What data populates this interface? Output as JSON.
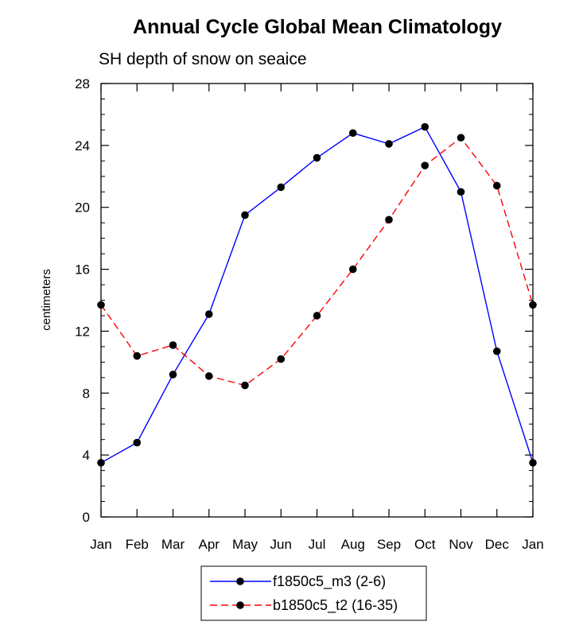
{
  "chart_data": {
    "type": "line",
    "title": "Annual Cycle Global Mean Climatology",
    "subtitle": "SH depth of snow on seaice",
    "xlabel": "",
    "ylabel": "centimeters",
    "ylim": [
      0,
      28
    ],
    "yticks": [
      "0",
      "4",
      "8",
      "12",
      "16",
      "20",
      "24",
      "28"
    ],
    "categories": [
      "Jan",
      "Feb",
      "Mar",
      "Apr",
      "May",
      "Jun",
      "Jul",
      "Aug",
      "Sep",
      "Oct",
      "Nov",
      "Dec",
      "Jan"
    ],
    "series": [
      {
        "name": "f1850c5_m3 (2-6)",
        "color": "#0000ff",
        "dash": "solid",
        "values": [
          3.5,
          4.8,
          9.2,
          13.1,
          19.5,
          21.3,
          23.2,
          24.8,
          24.1,
          25.2,
          21.0,
          10.7,
          3.5
        ]
      },
      {
        "name": "b1850c5_t2 (16-35)",
        "color": "#ff0000",
        "dash": "dashed",
        "values": [
          13.7,
          10.4,
          11.1,
          9.1,
          8.5,
          10.2,
          13.0,
          16.0,
          19.2,
          22.7,
          24.5,
          21.4,
          13.7
        ]
      }
    ],
    "legend_position": "bottom-center"
  }
}
